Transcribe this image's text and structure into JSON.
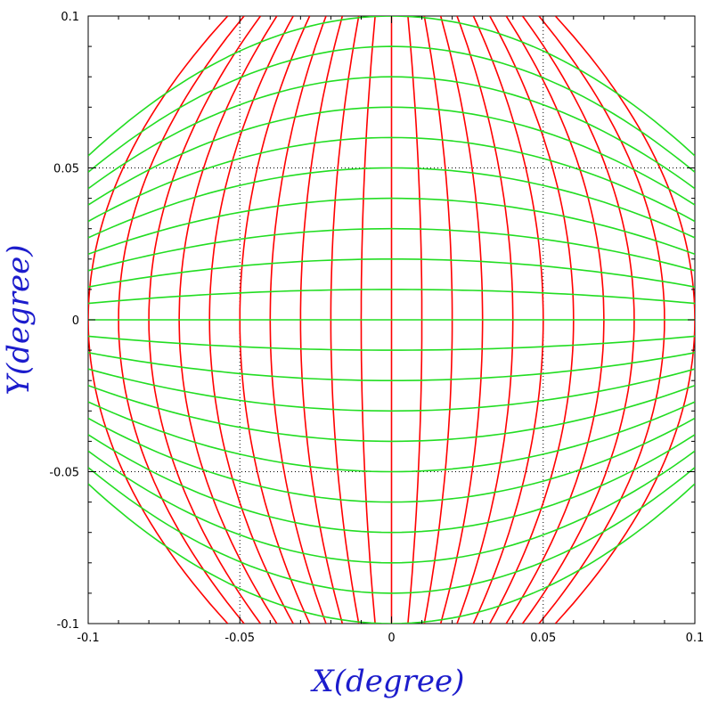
{
  "chart_data": {
    "type": "line",
    "title": "",
    "xlabel": "X(degree)",
    "ylabel": "Y(degree)",
    "xlim": [
      -0.1,
      0.1
    ],
    "ylim": [
      -0.1,
      0.1
    ],
    "x_ticks": [
      "-0.1",
      "-0.05",
      "0",
      "0.05",
      "0.1"
    ],
    "y_ticks": [
      "-0.1",
      "-0.05",
      "0",
      "0.05",
      "0.1"
    ],
    "grid": "dotted at -0.05, 0, 0.05",
    "distortion_coefficient": 0.46,
    "series": [
      {
        "color": "#ff0000",
        "orientation": "vertical",
        "values": [
          -0.1,
          -0.09,
          -0.08,
          -0.07,
          -0.06,
          -0.05,
          -0.04,
          -0.03,
          -0.02,
          -0.01,
          0,
          0.01,
          0.02,
          0.03,
          0.04,
          0.05,
          0.06,
          0.07,
          0.08,
          0.09,
          0.1
        ]
      },
      {
        "color": "#22dd22",
        "orientation": "horizontal",
        "values": [
          -0.1,
          -0.09,
          -0.08,
          -0.07,
          -0.06,
          -0.05,
          -0.04,
          -0.03,
          -0.02,
          -0.01,
          0,
          0.01,
          0.02,
          0.03,
          0.04,
          0.05,
          0.06,
          0.07,
          0.08,
          0.09,
          0.1
        ]
      }
    ]
  }
}
